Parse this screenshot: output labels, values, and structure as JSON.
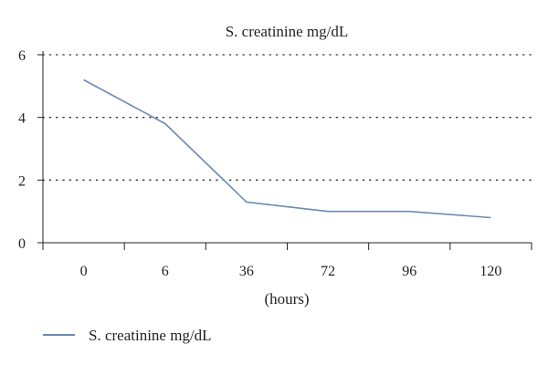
{
  "chart_data": {
    "type": "line",
    "title": "S. creatinine mg/dL",
    "xlabel": "(hours)",
    "ylabel": "",
    "categories": [
      "0",
      "6",
      "36",
      "72",
      "96",
      "120"
    ],
    "series": [
      {
        "name": "S. creatinine mg/dL",
        "values": [
          5.2,
          3.8,
          1.3,
          1.0,
          1.0,
          0.8
        ],
        "color": "#6a8bb5"
      }
    ],
    "ylim": [
      0,
      6
    ],
    "yticks": [
      "0",
      "2",
      "4",
      "6"
    ],
    "grid": "horizontal dotted",
    "legend": "bottom-left"
  }
}
